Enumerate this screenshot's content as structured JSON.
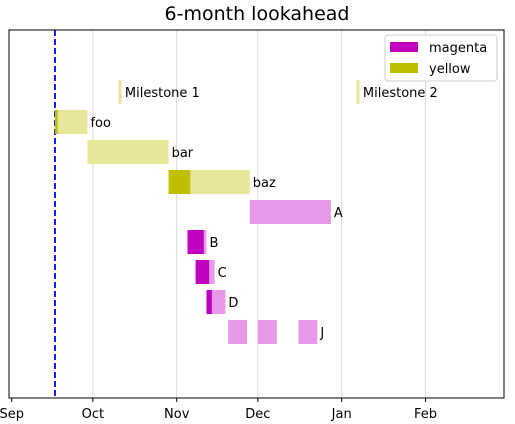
{
  "chart_data": {
    "type": "gantt",
    "title": "6-month lookahead",
    "xlabel": "",
    "ylabel": "",
    "x_axis": {
      "type": "date",
      "range": [
        "2023-08-31",
        "2024-03-01"
      ],
      "ticks": [
        {
          "date": "2023-09-01",
          "label": "Sep"
        },
        {
          "date": "2023-10-01",
          "label": "Oct"
        },
        {
          "date": "2023-11-01",
          "label": "Nov"
        },
        {
          "date": "2023-12-01",
          "label": "Dec"
        },
        {
          "date": "2024-01-01",
          "label": "Jan"
        },
        {
          "date": "2024-02-01",
          "label": "Feb"
        }
      ],
      "grid": true
    },
    "today_marker": {
      "date": "2023-09-17",
      "color": "#0000ff",
      "style": "dashed"
    },
    "colors": {
      "magenta": "#bf00bf",
      "magenta_light": "#e699e6",
      "yellow": "#bfbf00",
      "yellow_light": "#e6e699"
    },
    "legend": {
      "placement": "top-right",
      "entries": [
        {
          "label": "magenta",
          "color": "#bf00bf"
        },
        {
          "label": "yellow",
          "color": "#bfbf00"
        }
      ]
    },
    "milestones": [
      {
        "label": "Milestone 1",
        "date": "2023-10-11",
        "color": "#e6e699"
      },
      {
        "label": "Milestone 2",
        "date": "2024-01-07",
        "color": "#e6e699"
      }
    ],
    "tasks": [
      {
        "label": "foo",
        "color": "yellow",
        "segments": [
          {
            "start": "2023-09-17",
            "end": "2023-09-29",
            "done_end": "2023-09-18"
          }
        ]
      },
      {
        "label": "bar",
        "color": "yellow",
        "segments": [
          {
            "start": "2023-09-29",
            "end": "2023-10-29",
            "done_end": "2023-09-29"
          }
        ]
      },
      {
        "label": "baz",
        "color": "yellow",
        "segments": [
          {
            "start": "2023-10-29",
            "end": "2023-11-28",
            "done_end": "2023-11-06"
          }
        ]
      },
      {
        "label": "A",
        "color": "magenta",
        "segments": [
          {
            "start": "2023-11-28",
            "end": "2023-12-28",
            "done_end": "2023-11-28"
          }
        ]
      },
      {
        "label": "B",
        "color": "magenta",
        "segments": [
          {
            "start": "2023-11-05",
            "end": "2023-11-12",
            "done_end": "2023-11-11"
          }
        ]
      },
      {
        "label": "C",
        "color": "magenta",
        "segments": [
          {
            "start": "2023-11-08",
            "end": "2023-11-15",
            "done_end": "2023-11-13"
          }
        ]
      },
      {
        "label": "D",
        "color": "magenta",
        "segments": [
          {
            "start": "2023-11-12",
            "end": "2023-11-19",
            "done_end": "2023-11-14"
          }
        ]
      },
      {
        "label": "J",
        "color": "magenta",
        "segments": [
          {
            "start": "2023-11-20",
            "end": "2023-11-27",
            "done_end": "2023-11-20"
          },
          {
            "start": "2023-12-01",
            "end": "2023-12-08",
            "done_end": "2023-12-01"
          },
          {
            "start": "2023-12-16",
            "end": "2023-12-23",
            "done_end": "2023-12-16"
          }
        ]
      }
    ]
  }
}
